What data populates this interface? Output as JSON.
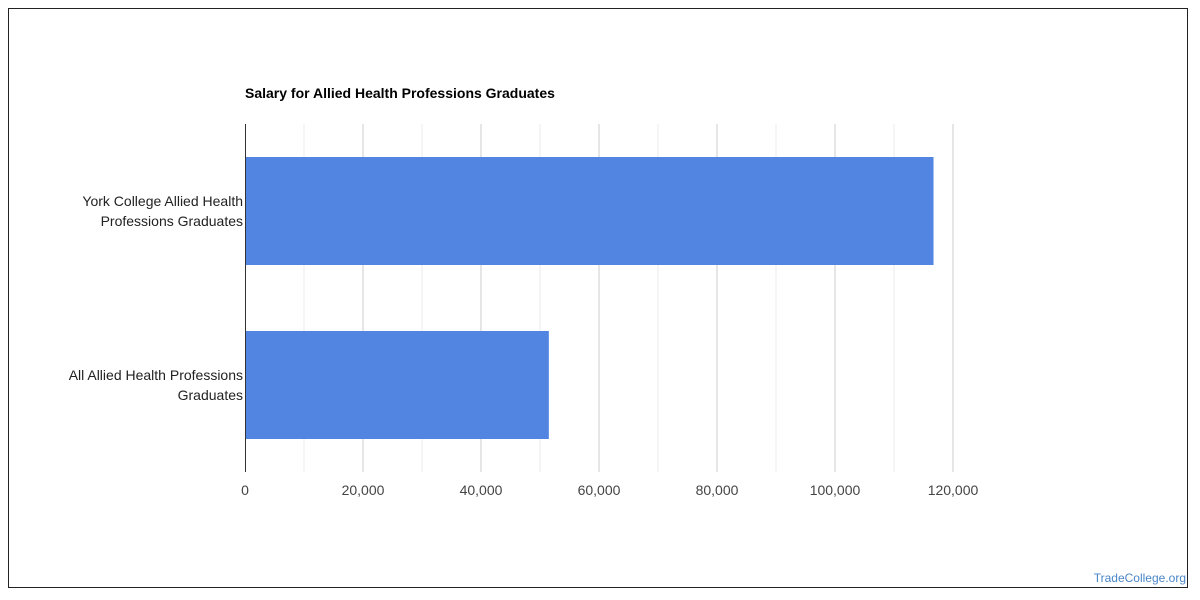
{
  "chart_data": {
    "type": "bar",
    "orientation": "horizontal",
    "title": "Salary for Allied Health Professions Graduates",
    "categories": [
      "York College Allied Health Professions Graduates",
      "All Allied Health Professions Graduates"
    ],
    "category_lines": [
      [
        "York College Allied Health",
        "Professions Graduates"
      ],
      [
        "All Allied Health Professions",
        "Graduates"
      ]
    ],
    "values": [
      116700,
      51500
    ],
    "xlim": [
      0,
      120000
    ],
    "xticks": [
      0,
      20000,
      40000,
      60000,
      80000,
      100000,
      120000
    ],
    "xtick_labels": [
      "0",
      "20,000",
      "40,000",
      "60,000",
      "80,000",
      "100,000",
      "120,000"
    ],
    "grid": true,
    "bar_color": "#5285e2",
    "grid_color": "#cccccc",
    "minor_grid_color": "#ebebeb"
  },
  "credit": "TradeCollege.org",
  "colors": {
    "link": "#4a86c8"
  }
}
